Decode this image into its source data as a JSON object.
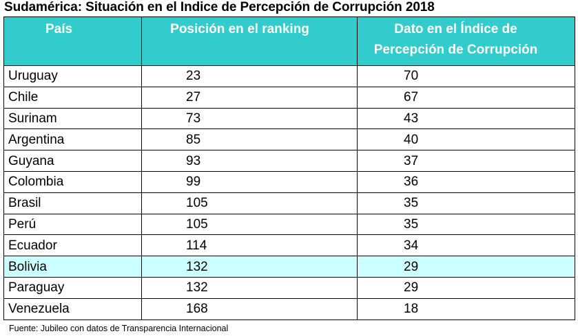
{
  "title": "Sudamérica: Situación en el Indice de Percepción de Corrupción 2018",
  "headers": {
    "country": "País",
    "rank": "Posición en el ranking",
    "score_line1": "Dato en el Índice de",
    "score_line2": "Percepción de Corrupción"
  },
  "rows": [
    {
      "country": "Uruguay",
      "rank": "23",
      "score": "70"
    },
    {
      "country": "Chile",
      "rank": "27",
      "score": "67"
    },
    {
      "country": "Surinam",
      "rank": "73",
      "score": "43"
    },
    {
      "country": "Argentina",
      "rank": "85",
      "score": "40"
    },
    {
      "country": "Guyana",
      "rank": "93",
      "score": "37"
    },
    {
      "country": "Colombia",
      "rank": "99",
      "score": "36"
    },
    {
      "country": "Brasil",
      "rank": "105",
      "score": "35"
    },
    {
      "country": "Perú",
      "rank": "105",
      "score": "35"
    },
    {
      "country": "Ecuador",
      "rank": "114",
      "score": "34"
    },
    {
      "country": "Bolivia",
      "rank": "132",
      "score": "29"
    },
    {
      "country": "Paraguay",
      "rank": "132",
      "score": "29"
    },
    {
      "country": "Venezuela",
      "rank": "168",
      "score": "18"
    }
  ],
  "highlighted_country": "Bolivia",
  "colors": {
    "header_bg": "#33cccc",
    "header_text": "#ffffff",
    "highlight_row": "#ccffff"
  },
  "source": "Fuente: Jubileo con datos de Transparencia Internacional"
}
